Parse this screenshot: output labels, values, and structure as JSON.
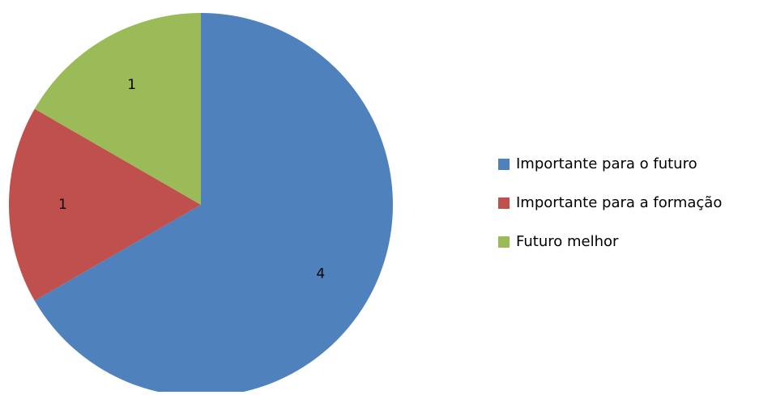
{
  "chart_data": {
    "type": "pie",
    "title": "",
    "start_angle": "12 o'clock",
    "direction": "clockwise",
    "legend_position": "right",
    "show_data_labels": true,
    "slices": [
      {
        "label": "Importante para o futuro",
        "value": 4,
        "color": "#4F81BD"
      },
      {
        "label": "Importante para a formação",
        "value": 1,
        "color": "#C0504D"
      },
      {
        "label": "Futuro melhor",
        "value": 1,
        "color": "#9BBB59"
      }
    ]
  }
}
